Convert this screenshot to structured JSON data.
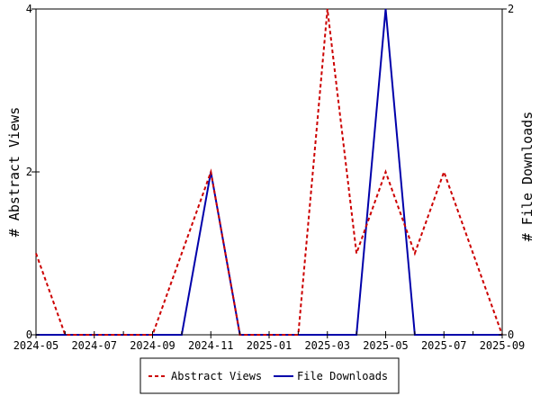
{
  "chart_data": {
    "type": "line",
    "x": [
      "2024-05",
      "2024-06",
      "2024-07",
      "2024-08",
      "2024-09",
      "2024-10",
      "2024-11",
      "2024-12",
      "2025-01",
      "2025-02",
      "2025-03",
      "2025-04",
      "2025-05",
      "2025-06",
      "2025-07",
      "2025-08",
      "2025-09"
    ],
    "x_tick_labels": [
      "2024-05",
      "2024-07",
      "2024-09",
      "2024-11",
      "2025-01",
      "2025-03",
      "2025-05",
      "2025-07",
      "2025-09"
    ],
    "series": [
      {
        "name": "Abstract Views",
        "axis": "left",
        "color": "#cc0000",
        "dash": "dashed",
        "values": [
          1,
          0,
          0,
          0,
          0,
          1,
          2,
          0,
          0,
          0,
          4,
          1,
          2,
          1,
          2,
          1,
          0
        ]
      },
      {
        "name": "File Downloads",
        "axis": "right",
        "color": "#0000aa",
        "dash": "solid",
        "values": [
          0,
          0,
          0,
          0,
          0,
          0,
          1,
          0,
          0,
          0,
          0,
          0,
          2,
          0,
          0,
          0,
          0
        ]
      }
    ],
    "y_left": {
      "label": "# Abstract Views",
      "ylim": [
        0,
        4
      ],
      "ticks": [
        "0",
        "2",
        "4"
      ],
      "tick_values": [
        0,
        2,
        4
      ]
    },
    "y_right": {
      "label": "# File Downloads",
      "ylim": [
        0,
        2
      ],
      "ticks": [
        "0",
        "2"
      ],
      "tick_values": [
        0,
        2
      ]
    },
    "grid": false,
    "legend_position": "bottom-center"
  }
}
